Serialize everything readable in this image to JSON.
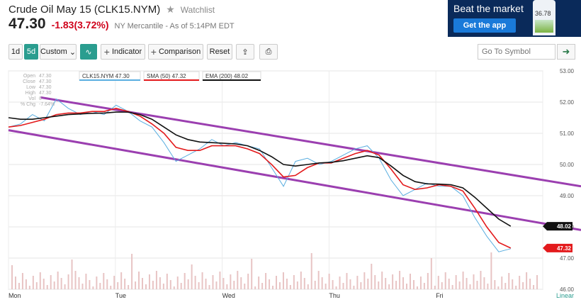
{
  "header": {
    "title": "Crude Oil May 15 (CLK15.NYM)",
    "watchlist": "Watchlist",
    "price": "47.30",
    "change": "-1.83(3.72%)",
    "exchange": "NY Mercantile - As of 5:14PM EDT"
  },
  "ad": {
    "title": "Beat the market",
    "button": "Get the app",
    "phone_price": "36.78"
  },
  "toolbar": {
    "range_1d": "1d",
    "range_5d": "5d",
    "custom": "Custom",
    "indicator": "Indicator",
    "comparison": "Comparison",
    "reset": "Reset",
    "symbol_placeholder": "Go To Symbol"
  },
  "ohlc": {
    "labels": [
      "Open",
      "Close",
      "Low",
      "High",
      "Vol",
      "% Chg"
    ],
    "values": [
      "47.30",
      "47.30",
      "47.30",
      "47.30",
      "0",
      "-7.64%"
    ]
  },
  "chart_data": {
    "type": "line",
    "x_labels": [
      "Mon",
      "Tue",
      "Wed",
      "Thu",
      "Fri"
    ],
    "scale_label": "Linear",
    "y_ticks": [
      "53.00",
      "52.00",
      "51.00",
      "50.00",
      "49.00",
      "48.00",
      "47.00",
      "46.00"
    ],
    "ylim": [
      46,
      53
    ],
    "legend": [
      "CLK15.NYM 47.30",
      "SMA (50) 47.32",
      "EMA (200) 48.02"
    ],
    "series": [
      {
        "name": "CLK15.NYM",
        "color": "#5aaee0",
        "values": [
          51.2,
          51.3,
          51.6,
          51.4,
          52.1,
          51.8,
          51.6,
          51.7,
          51.6,
          51.9,
          51.7,
          51.4,
          51.2,
          50.7,
          50.1,
          50.3,
          50.5,
          50.8,
          50.6,
          50.7,
          50.6,
          50.5,
          49.9,
          49.3,
          50.1,
          50.2,
          50.0,
          50.1,
          50.3,
          50.5,
          50.6,
          50.2,
          49.5,
          49.0,
          49.2,
          49.4,
          49.3,
          49.3,
          49.0,
          48.3,
          47.7,
          47.2,
          47.3
        ]
      },
      {
        "name": "SMA (50)",
        "color": "#e31a1c",
        "values": [
          51.2,
          51.25,
          51.35,
          51.45,
          51.6,
          51.65,
          51.65,
          51.7,
          51.7,
          51.8,
          51.7,
          51.55,
          51.3,
          51.0,
          50.55,
          50.45,
          50.45,
          50.6,
          50.6,
          50.6,
          50.5,
          50.35,
          50.0,
          49.6,
          49.65,
          49.9,
          50.05,
          50.05,
          50.2,
          50.35,
          50.45,
          50.3,
          49.85,
          49.35,
          49.2,
          49.25,
          49.35,
          49.3,
          49.15,
          48.6,
          48.0,
          47.5,
          47.32
        ]
      },
      {
        "name": "EMA (200)",
        "color": "#111111",
        "values": [
          51.5,
          51.45,
          51.45,
          51.5,
          51.55,
          51.6,
          51.62,
          51.64,
          51.65,
          51.68,
          51.68,
          51.6,
          51.45,
          51.2,
          50.95,
          50.8,
          50.72,
          50.7,
          50.68,
          50.66,
          50.6,
          50.45,
          50.25,
          50.0,
          49.95,
          50.0,
          50.05,
          50.07,
          50.12,
          50.2,
          50.28,
          50.22,
          49.95,
          49.65,
          49.45,
          49.38,
          49.37,
          49.35,
          49.25,
          48.95,
          48.6,
          48.25,
          48.02
        ]
      }
    ],
    "channel_lines": [
      {
        "from": [
          0.06,
          52.15
        ],
        "to": [
          1.0,
          49.3
        ]
      },
      {
        "from": [
          0.0,
          51.1
        ],
        "to": [
          1.0,
          47.9
        ]
      }
    ],
    "price_tags": [
      {
        "value": "48.02",
        "y": 48.02,
        "color": "#111111"
      },
      {
        "value": "47.32",
        "y": 47.32,
        "color": "#e31a1c"
      }
    ]
  }
}
